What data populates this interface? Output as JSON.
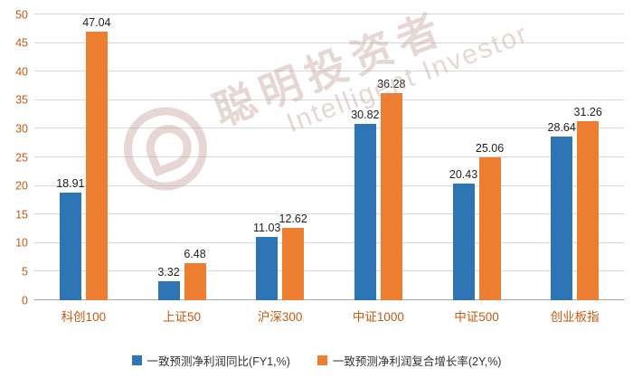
{
  "chart_data": {
    "type": "bar",
    "categories": [
      "科创100",
      "上证50",
      "沪深300",
      "中证1000",
      "中证500",
      "创业板指"
    ],
    "series": [
      {
        "name": "一致预测净利润同比(FY1,%)",
        "color": "#2E75B6",
        "values": [
          18.91,
          3.32,
          11.03,
          30.82,
          20.43,
          28.64
        ]
      },
      {
        "name": "一致预测净利润复合增长率(2Y,%)",
        "color": "#ED7D31",
        "values": [
          47.04,
          6.48,
          12.62,
          36.28,
          25.06,
          31.26
        ]
      }
    ],
    "title": "",
    "xlabel": "",
    "ylabel": "",
    "ylim": [
      0,
      50
    ],
    "ytick_step": 5,
    "grid": true,
    "legend_position": "bottom",
    "colors": {
      "axis_labels": "#C55A11",
      "data_labels": "#1f1f1f",
      "gridline": "#D9D9D9"
    }
  },
  "watermark": {
    "cn": "聪明投资者",
    "en": "Intelligent Investor"
  }
}
